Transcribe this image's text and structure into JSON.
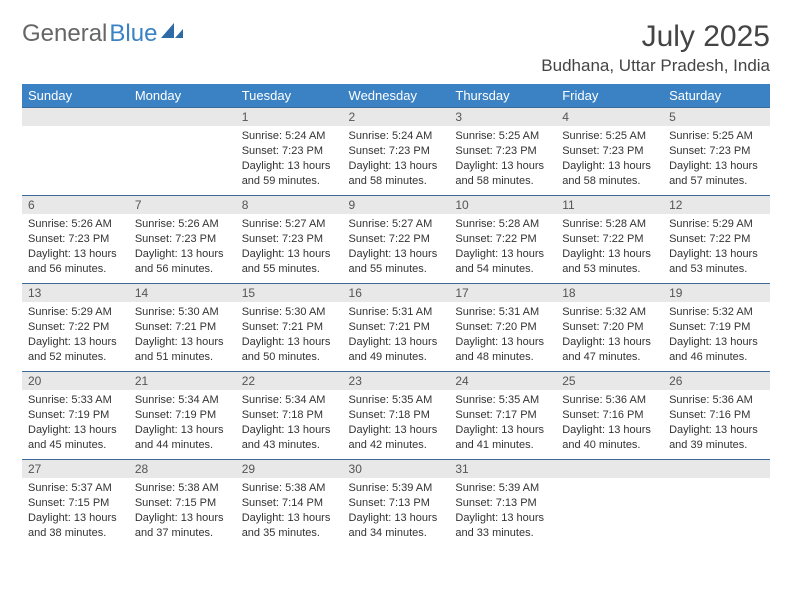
{
  "logo": {
    "text1": "General",
    "text2": "Blue"
  },
  "title": "July 2025",
  "location": "Budhana, Uttar Pradesh, India",
  "colors": {
    "header_bg": "#3b82c4",
    "header_text": "#ffffff",
    "daynum_bg": "#e8e8e8",
    "rule": "#3b6a9a",
    "logo_gray": "#666666",
    "logo_blue": "#3b82c4"
  },
  "weekdays": [
    "Sunday",
    "Monday",
    "Tuesday",
    "Wednesday",
    "Thursday",
    "Friday",
    "Saturday"
  ],
  "weeks": [
    [
      null,
      null,
      {
        "n": "1",
        "sr": "Sunrise: 5:24 AM",
        "ss": "Sunset: 7:23 PM",
        "dl": "Daylight: 13 hours and 59 minutes."
      },
      {
        "n": "2",
        "sr": "Sunrise: 5:24 AM",
        "ss": "Sunset: 7:23 PM",
        "dl": "Daylight: 13 hours and 58 minutes."
      },
      {
        "n": "3",
        "sr": "Sunrise: 5:25 AM",
        "ss": "Sunset: 7:23 PM",
        "dl": "Daylight: 13 hours and 58 minutes."
      },
      {
        "n": "4",
        "sr": "Sunrise: 5:25 AM",
        "ss": "Sunset: 7:23 PM",
        "dl": "Daylight: 13 hours and 58 minutes."
      },
      {
        "n": "5",
        "sr": "Sunrise: 5:25 AM",
        "ss": "Sunset: 7:23 PM",
        "dl": "Daylight: 13 hours and 57 minutes."
      }
    ],
    [
      {
        "n": "6",
        "sr": "Sunrise: 5:26 AM",
        "ss": "Sunset: 7:23 PM",
        "dl": "Daylight: 13 hours and 56 minutes."
      },
      {
        "n": "7",
        "sr": "Sunrise: 5:26 AM",
        "ss": "Sunset: 7:23 PM",
        "dl": "Daylight: 13 hours and 56 minutes."
      },
      {
        "n": "8",
        "sr": "Sunrise: 5:27 AM",
        "ss": "Sunset: 7:23 PM",
        "dl": "Daylight: 13 hours and 55 minutes."
      },
      {
        "n": "9",
        "sr": "Sunrise: 5:27 AM",
        "ss": "Sunset: 7:22 PM",
        "dl": "Daylight: 13 hours and 55 minutes."
      },
      {
        "n": "10",
        "sr": "Sunrise: 5:28 AM",
        "ss": "Sunset: 7:22 PM",
        "dl": "Daylight: 13 hours and 54 minutes."
      },
      {
        "n": "11",
        "sr": "Sunrise: 5:28 AM",
        "ss": "Sunset: 7:22 PM",
        "dl": "Daylight: 13 hours and 53 minutes."
      },
      {
        "n": "12",
        "sr": "Sunrise: 5:29 AM",
        "ss": "Sunset: 7:22 PM",
        "dl": "Daylight: 13 hours and 53 minutes."
      }
    ],
    [
      {
        "n": "13",
        "sr": "Sunrise: 5:29 AM",
        "ss": "Sunset: 7:22 PM",
        "dl": "Daylight: 13 hours and 52 minutes."
      },
      {
        "n": "14",
        "sr": "Sunrise: 5:30 AM",
        "ss": "Sunset: 7:21 PM",
        "dl": "Daylight: 13 hours and 51 minutes."
      },
      {
        "n": "15",
        "sr": "Sunrise: 5:30 AM",
        "ss": "Sunset: 7:21 PM",
        "dl": "Daylight: 13 hours and 50 minutes."
      },
      {
        "n": "16",
        "sr": "Sunrise: 5:31 AM",
        "ss": "Sunset: 7:21 PM",
        "dl": "Daylight: 13 hours and 49 minutes."
      },
      {
        "n": "17",
        "sr": "Sunrise: 5:31 AM",
        "ss": "Sunset: 7:20 PM",
        "dl": "Daylight: 13 hours and 48 minutes."
      },
      {
        "n": "18",
        "sr": "Sunrise: 5:32 AM",
        "ss": "Sunset: 7:20 PM",
        "dl": "Daylight: 13 hours and 47 minutes."
      },
      {
        "n": "19",
        "sr": "Sunrise: 5:32 AM",
        "ss": "Sunset: 7:19 PM",
        "dl": "Daylight: 13 hours and 46 minutes."
      }
    ],
    [
      {
        "n": "20",
        "sr": "Sunrise: 5:33 AM",
        "ss": "Sunset: 7:19 PM",
        "dl": "Daylight: 13 hours and 45 minutes."
      },
      {
        "n": "21",
        "sr": "Sunrise: 5:34 AM",
        "ss": "Sunset: 7:19 PM",
        "dl": "Daylight: 13 hours and 44 minutes."
      },
      {
        "n": "22",
        "sr": "Sunrise: 5:34 AM",
        "ss": "Sunset: 7:18 PM",
        "dl": "Daylight: 13 hours and 43 minutes."
      },
      {
        "n": "23",
        "sr": "Sunrise: 5:35 AM",
        "ss": "Sunset: 7:18 PM",
        "dl": "Daylight: 13 hours and 42 minutes."
      },
      {
        "n": "24",
        "sr": "Sunrise: 5:35 AM",
        "ss": "Sunset: 7:17 PM",
        "dl": "Daylight: 13 hours and 41 minutes."
      },
      {
        "n": "25",
        "sr": "Sunrise: 5:36 AM",
        "ss": "Sunset: 7:16 PM",
        "dl": "Daylight: 13 hours and 40 minutes."
      },
      {
        "n": "26",
        "sr": "Sunrise: 5:36 AM",
        "ss": "Sunset: 7:16 PM",
        "dl": "Daylight: 13 hours and 39 minutes."
      }
    ],
    [
      {
        "n": "27",
        "sr": "Sunrise: 5:37 AM",
        "ss": "Sunset: 7:15 PM",
        "dl": "Daylight: 13 hours and 38 minutes."
      },
      {
        "n": "28",
        "sr": "Sunrise: 5:38 AM",
        "ss": "Sunset: 7:15 PM",
        "dl": "Daylight: 13 hours and 37 minutes."
      },
      {
        "n": "29",
        "sr": "Sunrise: 5:38 AM",
        "ss": "Sunset: 7:14 PM",
        "dl": "Daylight: 13 hours and 35 minutes."
      },
      {
        "n": "30",
        "sr": "Sunrise: 5:39 AM",
        "ss": "Sunset: 7:13 PM",
        "dl": "Daylight: 13 hours and 34 minutes."
      },
      {
        "n": "31",
        "sr": "Sunrise: 5:39 AM",
        "ss": "Sunset: 7:13 PM",
        "dl": "Daylight: 13 hours and 33 minutes."
      },
      null,
      null
    ]
  ]
}
